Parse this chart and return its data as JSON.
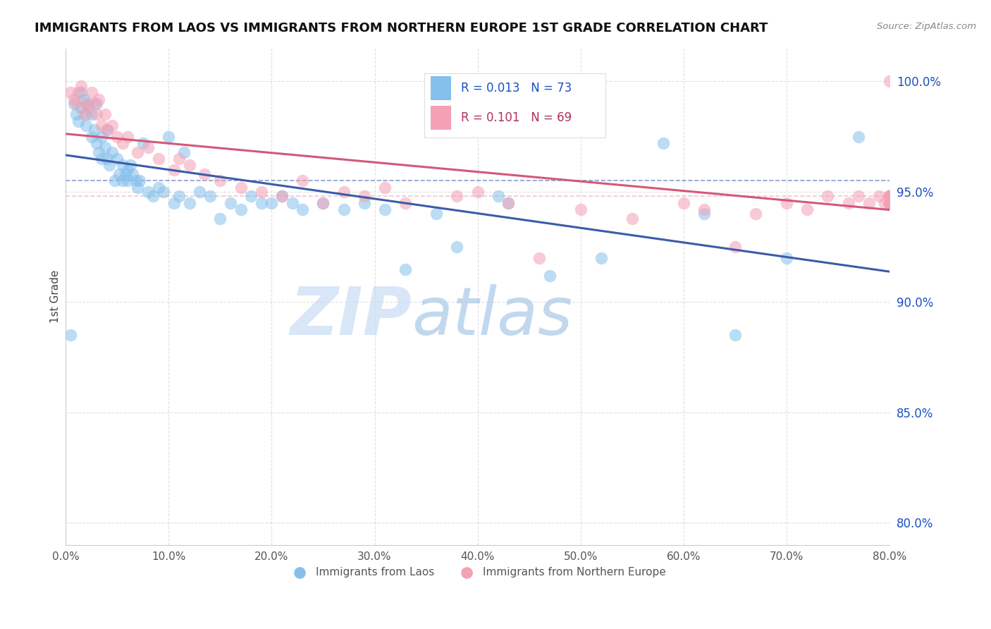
{
  "title": "IMMIGRANTS FROM LAOS VS IMMIGRANTS FROM NORTHERN EUROPE 1ST GRADE CORRELATION CHART",
  "source": "Source: ZipAtlas.com",
  "ylabel": "1st Grade",
  "xlim": [
    0.0,
    80.0
  ],
  "ylim": [
    79.0,
    101.5
  ],
  "yticks": [
    80.0,
    85.0,
    90.0,
    95.0,
    100.0
  ],
  "ytick_labels": [
    "80.0%",
    "85.0%",
    "90.0%",
    "95.0%",
    "100.0%"
  ],
  "xticks": [
    0,
    10,
    20,
    30,
    40,
    50,
    60,
    70,
    80
  ],
  "legend1_label": "Immigrants from Laos",
  "legend2_label": "Immigrants from Northern Europe",
  "R1": 0.013,
  "N1": 73,
  "R2": 0.101,
  "N2": 69,
  "color_blue": "#85C0EC",
  "color_pink": "#F4A0B5",
  "color_blue_line": "#3A5CA8",
  "color_pink_line": "#D45878",
  "color_R_blue": "#1A50C0",
  "color_R_pink": "#B03060",
  "watermark_zip": "ZIP",
  "watermark_atlas": "atlas",
  "background_color": "#FFFFFF",
  "grid_color": "#CCCCCC",
  "blue_scatter_x": [
    0.5,
    0.8,
    1.0,
    1.2,
    1.5,
    1.5,
    1.8,
    2.0,
    2.0,
    2.2,
    2.5,
    2.5,
    2.8,
    3.0,
    3.0,
    3.2,
    3.5,
    3.5,
    3.8,
    4.0,
    4.0,
    4.2,
    4.5,
    4.8,
    5.0,
    5.2,
    5.5,
    5.5,
    5.8,
    6.0,
    6.0,
    6.3,
    6.5,
    6.8,
    7.0,
    7.2,
    7.5,
    8.0,
    8.5,
    9.0,
    9.5,
    10.0,
    10.5,
    11.0,
    11.5,
    12.0,
    13.0,
    14.0,
    15.0,
    16.0,
    17.0,
    18.0,
    19.0,
    20.0,
    21.0,
    22.0,
    23.0,
    25.0,
    27.0,
    29.0,
    31.0,
    33.0,
    36.0,
    38.0,
    42.0,
    43.0,
    47.0,
    52.0,
    58.0,
    62.0,
    65.0,
    70.0,
    77.0
  ],
  "blue_scatter_y": [
    88.5,
    99.0,
    98.5,
    98.2,
    99.5,
    98.8,
    99.2,
    98.5,
    98.0,
    99.0,
    97.5,
    98.5,
    97.8,
    97.2,
    99.0,
    96.8,
    97.5,
    96.5,
    97.0,
    96.5,
    97.8,
    96.2,
    96.8,
    95.5,
    96.5,
    95.8,
    96.2,
    95.5,
    95.8,
    95.5,
    96.0,
    96.2,
    95.8,
    95.5,
    95.2,
    95.5,
    97.2,
    95.0,
    94.8,
    95.2,
    95.0,
    97.5,
    94.5,
    94.8,
    96.8,
    94.5,
    95.0,
    94.8,
    93.8,
    94.5,
    94.2,
    94.8,
    94.5,
    94.5,
    94.8,
    94.5,
    94.2,
    94.5,
    94.2,
    94.5,
    94.2,
    91.5,
    94.0,
    92.5,
    94.8,
    94.5,
    91.2,
    92.0,
    97.2,
    94.0,
    88.5,
    92.0,
    97.5
  ],
  "pink_scatter_x": [
    0.5,
    0.8,
    1.0,
    1.2,
    1.5,
    1.8,
    2.0,
    2.2,
    2.5,
    2.8,
    3.0,
    3.2,
    3.5,
    3.8,
    4.0,
    4.5,
    5.0,
    5.5,
    6.0,
    7.0,
    8.0,
    9.0,
    10.5,
    11.0,
    12.0,
    13.5,
    15.0,
    17.0,
    19.0,
    21.0,
    23.0,
    25.0,
    27.0,
    29.0,
    31.0,
    33.0,
    38.0,
    40.0,
    43.0,
    46.0,
    50.0,
    55.0,
    60.0,
    62.0,
    65.0,
    67.0,
    70.0,
    72.0,
    74.0,
    76.0,
    77.0,
    78.0,
    79.0,
    79.5,
    80.0,
    80.0,
    80.0,
    80.0,
    80.0,
    80.0,
    80.0,
    80.0,
    80.0,
    80.0,
    80.0,
    80.0,
    80.0,
    80.0,
    80.0
  ],
  "pink_scatter_y": [
    99.5,
    99.2,
    99.0,
    99.5,
    99.8,
    98.5,
    99.0,
    98.8,
    99.5,
    99.0,
    98.5,
    99.2,
    98.0,
    98.5,
    97.8,
    98.0,
    97.5,
    97.2,
    97.5,
    96.8,
    97.0,
    96.5,
    96.0,
    96.5,
    96.2,
    95.8,
    95.5,
    95.2,
    95.0,
    94.8,
    95.5,
    94.5,
    95.0,
    94.8,
    95.2,
    94.5,
    94.8,
    95.0,
    94.5,
    92.0,
    94.2,
    93.8,
    94.5,
    94.2,
    92.5,
    94.0,
    94.5,
    94.2,
    94.8,
    94.5,
    94.8,
    94.5,
    94.8,
    94.5,
    94.8,
    94.5,
    94.8,
    94.5,
    94.8,
    94.5,
    94.8,
    94.5,
    94.8,
    94.5,
    94.8,
    94.5,
    94.8,
    94.5,
    100.0
  ]
}
